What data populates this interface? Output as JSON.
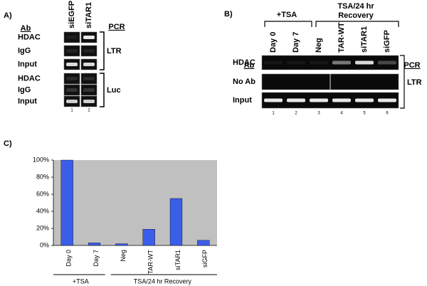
{
  "panel_a": {
    "label": "A)",
    "ab_header": "Ab",
    "pcr_header": "PCR",
    "lanes": [
      "siEGFP",
      "siTAR1"
    ],
    "lane_numbers": [
      "1",
      "2"
    ],
    "rows": [
      "HDAC",
      "IgG",
      "Input",
      "HDAC",
      "IgG",
      "Input"
    ],
    "groups": [
      "LTR",
      "Luc"
    ]
  },
  "panel_b": {
    "label": "B)",
    "ab_header": "Ab",
    "pcr_header": "PCR",
    "treatment_1": "+TSA",
    "treatment_2": [
      "TSA/24 hr",
      "Recovery"
    ],
    "lanes": [
      "Day 0",
      "Day 7",
      "Neg",
      "TAR-WT",
      "siTAR1",
      "siGFP"
    ],
    "lane_numbers": [
      "1",
      "2",
      "3",
      "4",
      "5",
      "6"
    ],
    "rows": [
      "HDAC",
      "No Ab",
      "Input"
    ],
    "group": "LTR"
  },
  "chart_data": {
    "type": "bar",
    "panel_label": "C)",
    "categories": [
      "Day 0",
      "Day 7",
      "Neg",
      "TAR-WT",
      "siTAR1",
      "siGFP"
    ],
    "values": [
      100,
      3,
      2,
      19,
      55,
      6
    ],
    "color": "#3b5ee8",
    "ylim": [
      0,
      100
    ],
    "yticks": [
      {
        "value": 0,
        "label": "0%"
      },
      {
        "value": 20,
        "label": "20%"
      },
      {
        "value": 40,
        "label": "40%"
      },
      {
        "value": 60,
        "label": "60%"
      },
      {
        "value": 80,
        "label": "80%"
      },
      {
        "value": 100,
        "label": "100%"
      }
    ],
    "groups": [
      "+TSA",
      "TSA/24 hr Recovery"
    ]
  }
}
